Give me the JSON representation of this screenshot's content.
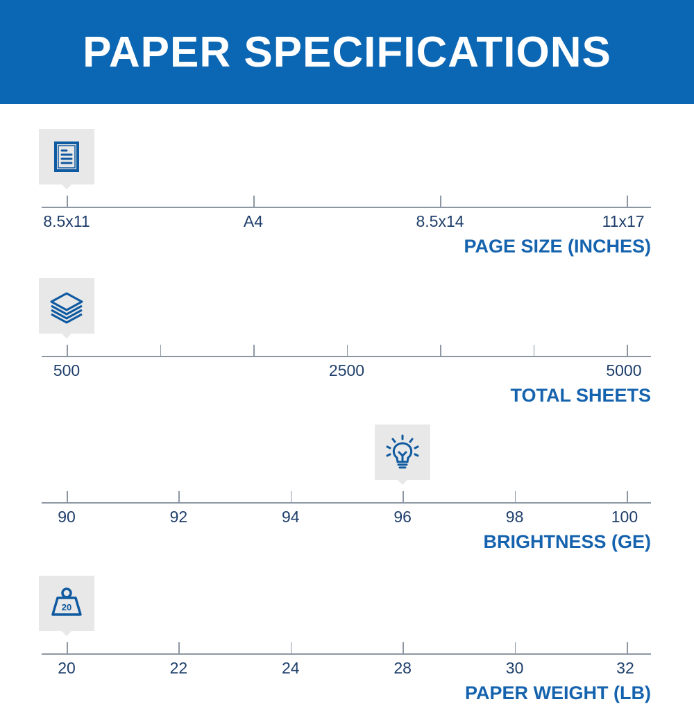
{
  "title": "PAPER SPECIFICATIONS",
  "colors": {
    "header": "#0b67b3",
    "title_text": "#1563ae",
    "icon": "#0f5aa0",
    "tick_label": "#1e3e6b"
  },
  "rows": [
    {
      "title": "PAGE SIZE (INCHES)",
      "icon": "document-icon",
      "ticks": [
        "8.5x11",
        "A4",
        "8.5x14",
        "11x17"
      ],
      "selected_index": 0
    },
    {
      "title": "TOTAL SHEETS",
      "icon": "paper-stack-icon",
      "ticks": [
        "500",
        "",
        "",
        "2500",
        "",
        "",
        "5000"
      ],
      "selected_index": 0
    },
    {
      "title": "BRIGHTNESS (GE)",
      "icon": "lightbulb-icon",
      "ticks": [
        "90",
        "92",
        "94",
        "96",
        "98",
        "100"
      ],
      "selected_index": 3
    },
    {
      "title": "PAPER WEIGHT (LB)",
      "icon": "weight-icon",
      "icon_text": "20",
      "ticks": [
        "20",
        "22",
        "24",
        "28",
        "30",
        "32"
      ],
      "selected_index": 0
    }
  ]
}
